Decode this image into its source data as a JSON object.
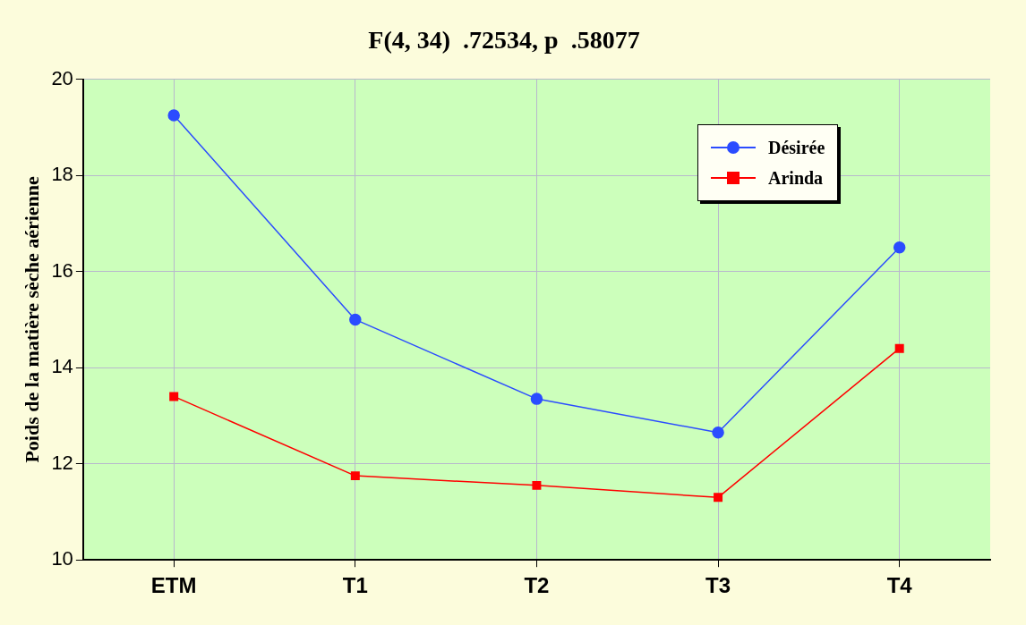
{
  "chart_data": {
    "type": "line",
    "title": "F(4, 34)  .72534, p  .58077",
    "ylabel": "Poids de la matière sèche aérienne",
    "categories": [
      "ETM",
      "T1",
      "T2",
      "T3",
      "T4"
    ],
    "series": [
      {
        "name": "Désirée",
        "color": "#2b4cff",
        "values": [
          19.25,
          15.0,
          13.35,
          12.65,
          16.5
        ],
        "marker": "circle"
      },
      {
        "name": "Arinda",
        "color": "#ff0000",
        "values": [
          13.4,
          11.75,
          11.55,
          11.3,
          14.4
        ],
        "marker": "square"
      }
    ],
    "ylim": [
      10,
      20
    ],
    "yticks": [
      10,
      12,
      14,
      16,
      18,
      20
    ],
    "grid": true,
    "legend": "top right"
  }
}
